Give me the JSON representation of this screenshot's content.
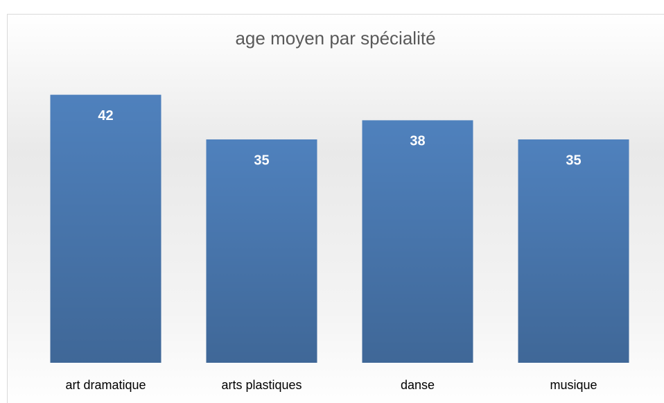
{
  "chart_data": {
    "type": "bar",
    "title": "age moyen par spécialité",
    "categories": [
      "art dramatique",
      "arts plastiques",
      "danse",
      "musique"
    ],
    "values": [
      42,
      35,
      38,
      35
    ],
    "color": "#4f81bd"
  }
}
